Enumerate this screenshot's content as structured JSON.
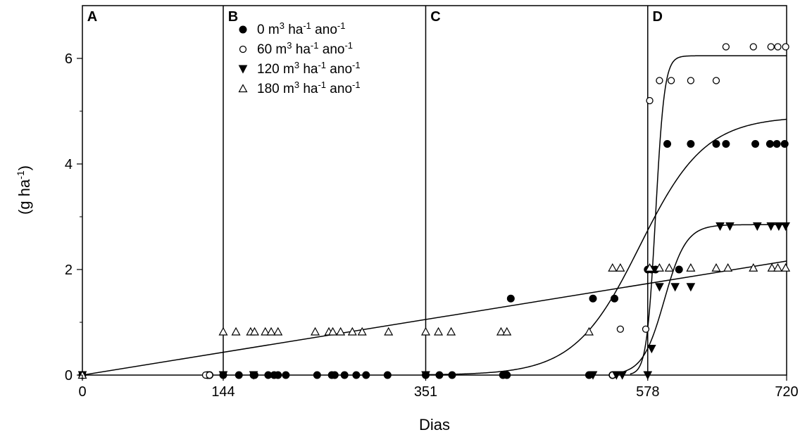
{
  "chart_data": {
    "type": "scatter",
    "xlabel": "Dias",
    "ylabel_parts": [
      "(g ha",
      "-1",
      ")"
    ],
    "xlim": [
      0,
      720
    ],
    "ylim": [
      0,
      7
    ],
    "x_ticks": [
      0,
      144,
      351,
      578,
      720
    ],
    "y_ticks": [
      0,
      2,
      4,
      6
    ],
    "grid": false,
    "legend_position": "top-center",
    "period_lines": [
      144,
      351,
      578
    ],
    "panel_labels": [
      {
        "label": "A",
        "x": 2
      },
      {
        "label": "B",
        "x": 146
      },
      {
        "label": "C",
        "x": 353
      },
      {
        "label": "D",
        "x": 580
      }
    ],
    "series": [
      {
        "name_parts": [
          "0 m",
          "3",
          " ha",
          "-1",
          " ano",
          "-1"
        ],
        "marker": "filled-circle",
        "points": [
          [
            0,
            0
          ],
          [
            128,
            0
          ],
          [
            130,
            0
          ],
          [
            144,
            0
          ],
          [
            160,
            0
          ],
          [
            175,
            0
          ],
          [
            176,
            0
          ],
          [
            190,
            0
          ],
          [
            196,
            0
          ],
          [
            200,
            0
          ],
          [
            208,
            0
          ],
          [
            240,
            0
          ],
          [
            255,
            0
          ],
          [
            258,
            0
          ],
          [
            268,
            0
          ],
          [
            280,
            0
          ],
          [
            290,
            0
          ],
          [
            312,
            0
          ],
          [
            351,
            0
          ],
          [
            365,
            0
          ],
          [
            378,
            0
          ],
          [
            430,
            0
          ],
          [
            434,
            0
          ],
          [
            438,
            1.45
          ],
          [
            518,
            0
          ],
          [
            522,
            1.45
          ],
          [
            542,
            0
          ],
          [
            544,
            1.45
          ],
          [
            578,
            2.0
          ],
          [
            582,
            2.0
          ],
          [
            586,
            2.0
          ],
          [
            598,
            4.38
          ],
          [
            610,
            2.0
          ],
          [
            622,
            4.38
          ],
          [
            648,
            4.38
          ],
          [
            658,
            4.38
          ],
          [
            688,
            4.38
          ],
          [
            703,
            4.38
          ],
          [
            710,
            4.38
          ],
          [
            718,
            4.38
          ]
        ]
      },
      {
        "name_parts": [
          "60 m",
          "3",
          " ha",
          "-1",
          " ano",
          "-1"
        ],
        "marker": "open-circle",
        "points": [
          [
            0,
            0
          ],
          [
            126,
            0
          ],
          [
            130,
            0
          ],
          [
            542,
            0
          ],
          [
            550,
            0.87
          ],
          [
            576,
            0.87
          ],
          [
            580,
            5.2
          ],
          [
            590,
            5.58
          ],
          [
            602,
            5.58
          ],
          [
            622,
            5.58
          ],
          [
            648,
            5.58
          ],
          [
            658,
            6.22
          ],
          [
            686,
            6.22
          ],
          [
            704,
            6.22
          ],
          [
            711,
            6.22
          ],
          [
            719,
            6.22
          ]
        ]
      },
      {
        "name_parts": [
          "120 m",
          "3",
          " ha",
          "-1",
          " ano",
          "-1"
        ],
        "marker": "filled-triangle-down",
        "points": [
          [
            0,
            0
          ],
          [
            144,
            0
          ],
          [
            175,
            0
          ],
          [
            351,
            0
          ],
          [
            522,
            0
          ],
          [
            546,
            0
          ],
          [
            552,
            0
          ],
          [
            578,
            0
          ],
          [
            582,
            0.5
          ],
          [
            590,
            1.67
          ],
          [
            606,
            1.67
          ],
          [
            622,
            1.67
          ],
          [
            652,
            2.82
          ],
          [
            662,
            2.82
          ],
          [
            690,
            2.82
          ],
          [
            704,
            2.82
          ],
          [
            712,
            2.82
          ],
          [
            719,
            2.82
          ]
        ]
      },
      {
        "name_parts": [
          "180 m",
          "3",
          " ha",
          "-1",
          " ano",
          "-1"
        ],
        "marker": "open-triangle-up",
        "points": [
          [
            0,
            0
          ],
          [
            144,
            0.82
          ],
          [
            157,
            0.82
          ],
          [
            172,
            0.82
          ],
          [
            176,
            0.82
          ],
          [
            187,
            0.82
          ],
          [
            193,
            0.82
          ],
          [
            200,
            0.82
          ],
          [
            238,
            0.82
          ],
          [
            252,
            0.82
          ],
          [
            256,
            0.82
          ],
          [
            264,
            0.82
          ],
          [
            276,
            0.82
          ],
          [
            286,
            0.82
          ],
          [
            313,
            0.82
          ],
          [
            351,
            0.82
          ],
          [
            364,
            0.82
          ],
          [
            377,
            0.82
          ],
          [
            428,
            0.82
          ],
          [
            434,
            0.82
          ],
          [
            518,
            0.82
          ],
          [
            542,
            2.03
          ],
          [
            550,
            2.03
          ],
          [
            580,
            2.03
          ],
          [
            590,
            2.03
          ],
          [
            600,
            2.03
          ],
          [
            622,
            2.03
          ],
          [
            648,
            2.03
          ],
          [
            660,
            2.03
          ],
          [
            686,
            2.03
          ],
          [
            705,
            2.03
          ],
          [
            711,
            2.03
          ],
          [
            719,
            2.03
          ]
        ]
      }
    ],
    "fitted_curves": [
      {
        "series_index": 0,
        "kind": "logistic",
        "a": 4.9,
        "b": 0.03,
        "x0": 570,
        "x_start": 351,
        "x_end": 720
      },
      {
        "series_index": 1,
        "kind": "logistic",
        "a": 6.05,
        "b": 0.22,
        "x0": 586,
        "x_start": 560,
        "x_end": 720
      },
      {
        "series_index": 2,
        "kind": "logistic",
        "a": 2.85,
        "b": 0.09,
        "x0": 595,
        "x_start": 551,
        "x_end": 720
      },
      {
        "series_index": 3,
        "kind": "linear",
        "x_start": 0,
        "y_start": 0,
        "x_end": 720,
        "y_end": 2.16
      }
    ]
  }
}
